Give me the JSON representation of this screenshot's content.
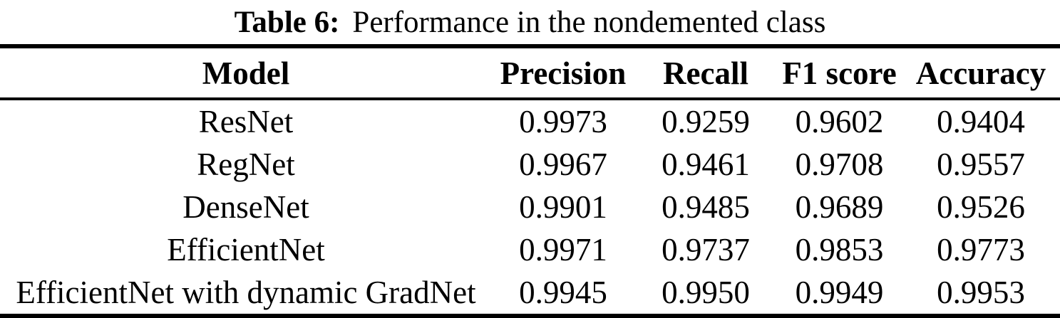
{
  "caption": {
    "label": "Table 6:",
    "text": "Performance in the nondemented class"
  },
  "table": {
    "columns": [
      "Model",
      "Precision",
      "Recall",
      "F1 score",
      "Accuracy"
    ],
    "rows": [
      [
        "ResNet",
        "0.9973",
        "0.9259",
        "0.9602",
        "0.9404"
      ],
      [
        "RegNet",
        "0.9967",
        "0.9461",
        "0.9708",
        "0.9557"
      ],
      [
        "DenseNet",
        "0.9901",
        "0.9485",
        "0.9689",
        "0.9526"
      ],
      [
        "EfficientNet",
        "0.9971",
        "0.9737",
        "0.9853",
        "0.9773"
      ],
      [
        "EfficientNet with dynamic GradNet",
        "0.9945",
        "0.9950",
        "0.9949",
        "0.9953"
      ]
    ]
  },
  "colors": {
    "text": "#000000",
    "background": "#ffffff",
    "rule": "#000000"
  }
}
